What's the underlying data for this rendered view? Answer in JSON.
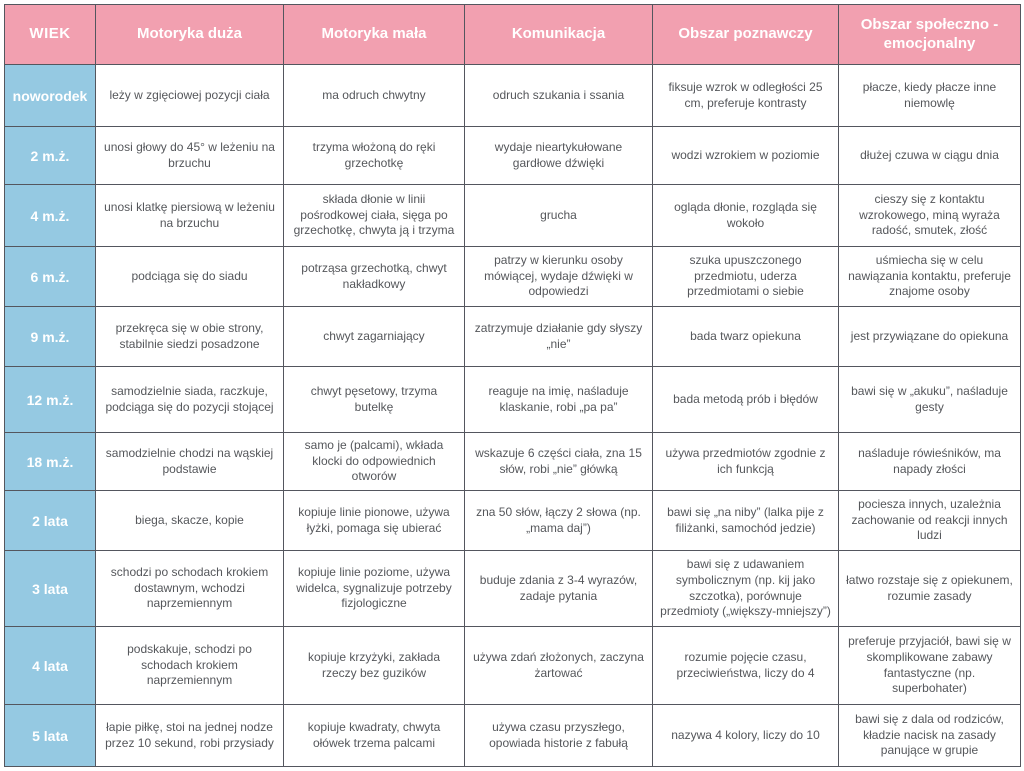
{
  "colors": {
    "header_bg": "#F2A0B0",
    "age_bg": "#95C9E2",
    "border": "#54565E",
    "cell_text": "#55575B",
    "header_text": "#FFFFFF"
  },
  "table": {
    "headers": [
      "WIEK",
      "Motoryka duża",
      "Motoryka mała",
      "Komunikacja",
      "Obszar poznawczy",
      "Obszar społeczno -emocjonalny"
    ],
    "rows": [
      {
        "age": "noworodek",
        "cells": [
          "leży w zgięciowej pozycji ciała",
          "ma odruch chwytny",
          "odruch szukania i ssania",
          "fiksuje wzrok w odległości 25 cm, preferuje kontrasty",
          "płacze, kiedy płacze inne niemowlę"
        ]
      },
      {
        "age": "2 m.ż.",
        "cells": [
          "unosi głowy do 45° w leżeniu na brzuchu",
          "trzyma włożoną do ręki grzechotkę",
          "wydaje nieartykułowane gardłowe dźwięki",
          "wodzi wzrokiem w poziomie",
          "dłużej czuwa w ciągu dnia"
        ]
      },
      {
        "age": "4 m.ż.",
        "cells": [
          "unosi klatkę piersiową w leżeniu na brzuchu",
          "składa dłonie w linii pośrodkowej ciała, sięga po grzechotkę, chwyta ją i trzyma",
          "grucha",
          "ogląda dłonie, rozgląda się wokoło",
          "cieszy się z kontaktu wzrokowego, miną wyraża radość, smutek, złość"
        ]
      },
      {
        "age": "6 m.ż.",
        "cells": [
          "podciąga się do siadu",
          "potrząsa grzechotką, chwyt nakładkowy",
          "patrzy w kierunku osoby mówiącej, wydaje dźwięki w odpowiedzi",
          "szuka upuszczonego przedmiotu, uderza przedmiotami o siebie",
          "uśmiecha się w celu nawiązania kontaktu, preferuje znajome osoby"
        ]
      },
      {
        "age": "9 m.ż.",
        "cells": [
          "przekręca się w obie strony, stabilnie siedzi posadzone",
          "chwyt zagarniający",
          "zatrzymuje działanie gdy słyszy „nie”",
          "bada twarz opiekuna",
          "jest przywiązane do opiekuna"
        ]
      },
      {
        "age": "12 m.ż.",
        "cells": [
          "samodzielnie siada, raczkuje, podciąga się do pozycji stojącej",
          "chwyt pęsetowy, trzyma butelkę",
          "reaguje na imię, naśladuje klaskanie, robi „pa pa”",
          "bada metodą prób i błędów",
          "bawi się w „akuku”, naśladuje gesty"
        ]
      },
      {
        "age": "18 m.ż.",
        "cells": [
          "samodzielnie chodzi na wąskiej podstawie",
          "samo je (palcami), wkłada klocki do odpowiednich otworów",
          "wskazuje 6 części ciała, zna 15 słów, robi „nie” główką",
          "używa przedmiotów zgodnie z ich funkcją",
          "naśladuje rówieśników, ma napady złości"
        ]
      },
      {
        "age": "2 lata",
        "cells": [
          "biega, skacze, kopie",
          "kopiuje linie pionowe, używa łyżki, pomaga się ubierać",
          "zna 50 słów, łączy 2 słowa (np. „mama daj”)",
          "bawi się „na niby” (lalka pije z filiżanki, samochód jedzie)",
          "pociesza innych, uzależnia zachowanie od reakcji innych ludzi"
        ]
      },
      {
        "age": "3 lata",
        "cells": [
          "schodzi po schodach krokiem dostawnym, wchodzi naprzemiennym",
          "kopiuje linie poziome, używa widelca, sygnalizuje potrzeby fizjologiczne",
          "buduje zdania z 3-4 wyrazów, zadaje pytania",
          "bawi się z udawaniem symbolicznym (np. kij jako szczotka), porównuje przedmioty („większy-mniejszy”)",
          "łatwo rozstaje się z opiekunem, rozumie zasady"
        ]
      },
      {
        "age": "4 lata",
        "cells": [
          "podskakuje, schodzi po schodach krokiem naprzemiennym",
          "kopiuje krzyżyki, zakłada rzeczy bez guzików",
          "używa zdań złożonych, zaczyna żartować",
          "rozumie pojęcie czasu, przeciwieństwa, liczy do 4",
          "preferuje przyjaciół, bawi się w skomplikowane zabawy fantastyczne (np. superbohater)"
        ]
      },
      {
        "age": "5 lata",
        "cells": [
          "łapie piłkę, stoi na jednej nodze przez 10 sekund, robi przysiady",
          "kopiuje kwadraty, chwyta ołówek trzema palcami",
          "używa czasu przyszłego, opowiada historie z fabułą",
          "nazywa 4 kolory, liczy do 10",
          "bawi się z dala od rodziców, kładzie nacisk na zasady panujące w grupie"
        ]
      }
    ]
  }
}
